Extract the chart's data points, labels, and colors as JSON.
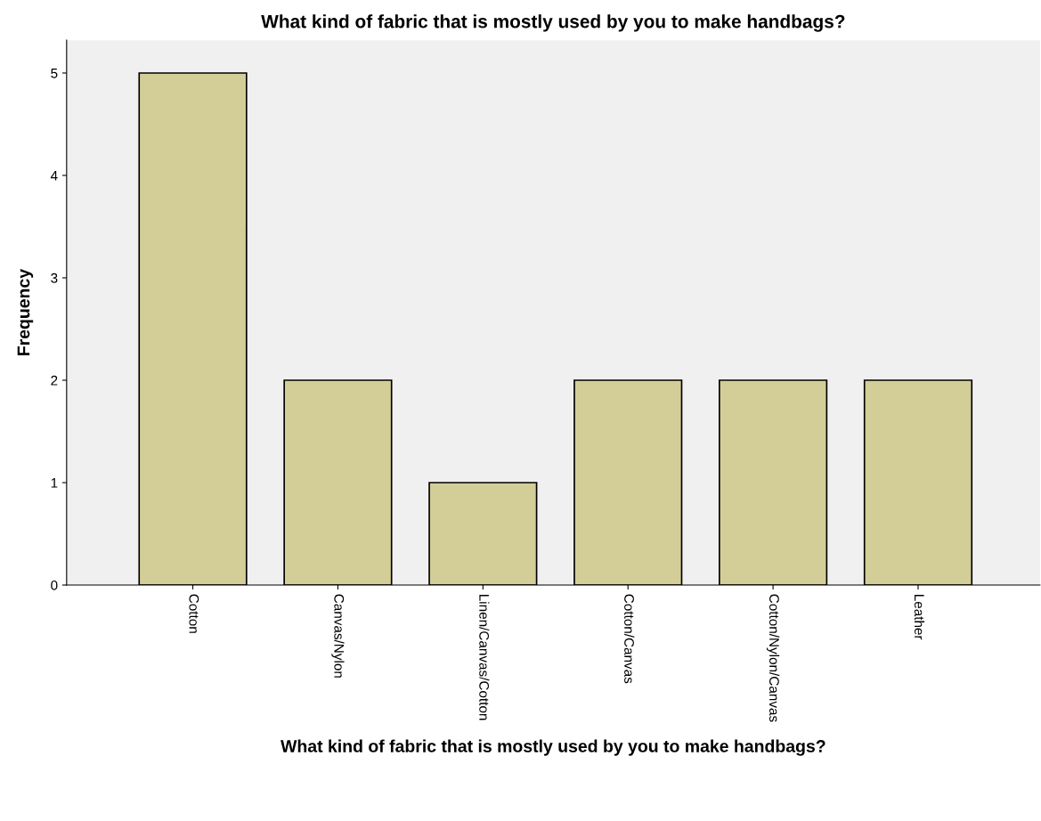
{
  "chart_data": {
    "type": "bar",
    "title": "What kind of fabric that is mostly used by you to make handbags?",
    "xlabel": "What kind of fabric that is mostly used by you to make handbags?",
    "ylabel": "Frequency",
    "categories": [
      "Cotton",
      "Canvas/Nylon",
      "Linen/Canvas/Cotton",
      "Cotton/Canvas",
      "Cotton/Nylon/Canvas",
      "Leather"
    ],
    "values": [
      5,
      2,
      1,
      2,
      2,
      2
    ],
    "color": "#d3ce97",
    "ylim": [
      0,
      5.32
    ],
    "yticks": [
      0,
      1,
      2,
      3,
      4,
      5
    ],
    "grid": false,
    "legend": false
  }
}
